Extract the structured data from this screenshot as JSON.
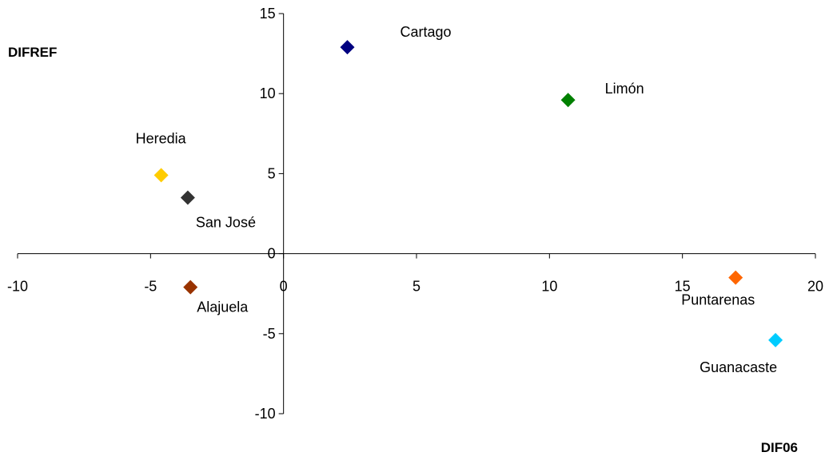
{
  "chart_data": {
    "type": "scatter",
    "title": "",
    "xlabel": "DIF06",
    "ylabel": "DIFREF",
    "xlim": [
      -10,
      20
    ],
    "ylim": [
      -10,
      15
    ],
    "xticks": [
      -10,
      -5,
      0,
      5,
      10,
      15,
      20
    ],
    "yticks": [
      -10,
      -5,
      0,
      5,
      10,
      15
    ],
    "grid": false,
    "legend": "none",
    "points": [
      {
        "label": "Cartago",
        "x": 2.4,
        "y": 12.9,
        "color": "#000080"
      },
      {
        "label": "Limón",
        "x": 10.7,
        "y": 9.6,
        "color": "#008000"
      },
      {
        "label": "Heredia",
        "x": -4.6,
        "y": 4.9,
        "color": "#FFCC00"
      },
      {
        "label": "San José",
        "x": -3.6,
        "y": 3.5,
        "color": "#333333"
      },
      {
        "label": "Alajuela",
        "x": -3.5,
        "y": -2.1,
        "color": "#993300"
      },
      {
        "label": "Puntarenas",
        "x": 17.0,
        "y": -1.5,
        "color": "#FF6600"
      },
      {
        "label": "Guanacaste",
        "x": 18.5,
        "y": -5.4,
        "color": "#00CCFF"
      }
    ]
  }
}
